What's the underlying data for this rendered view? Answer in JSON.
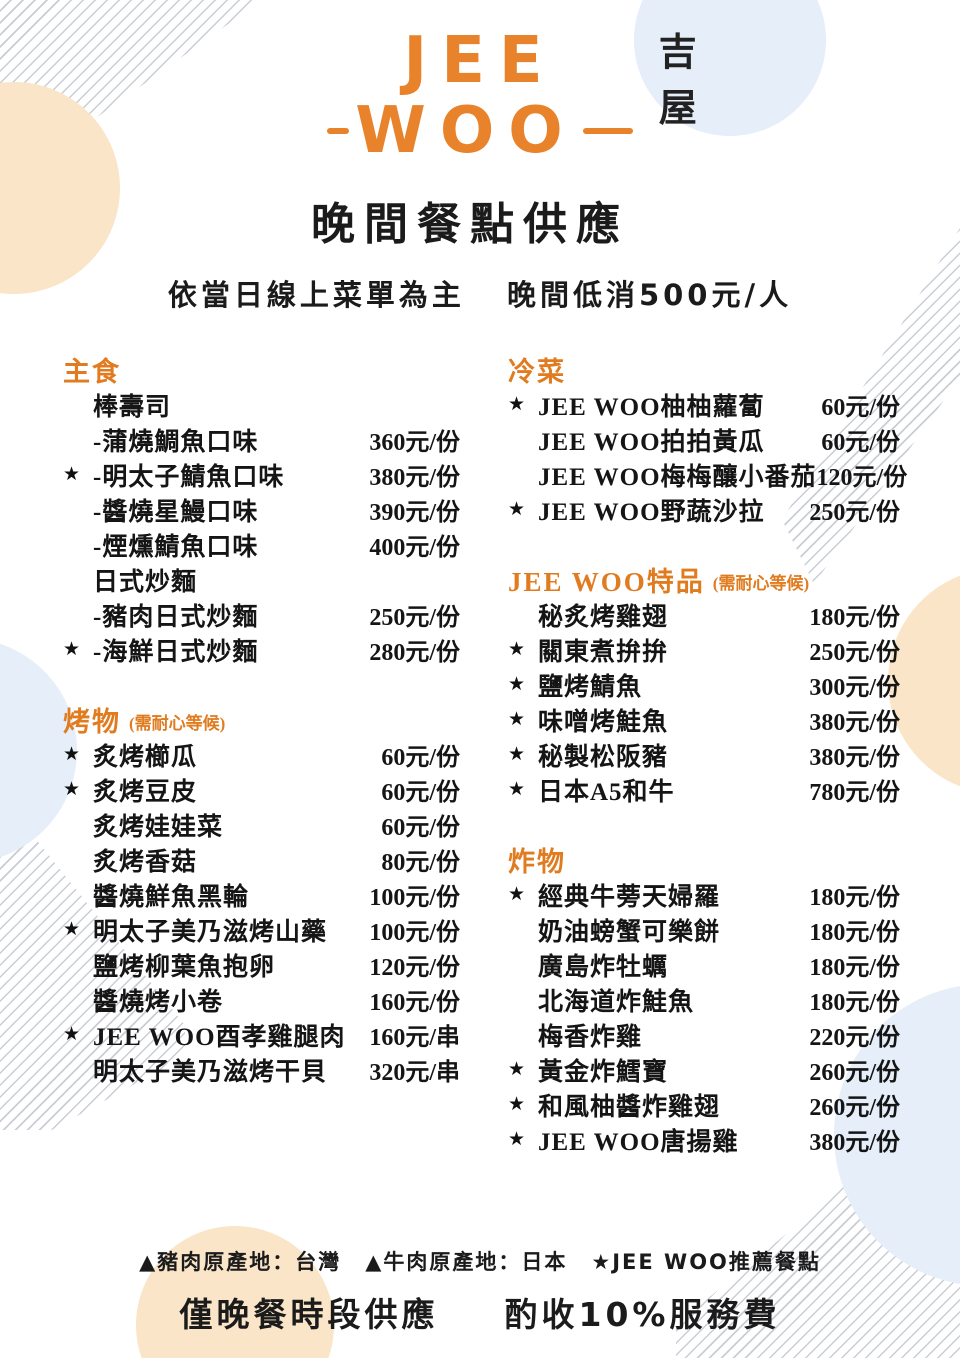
{
  "logo": {
    "top": "JEE",
    "bottom": "WOO",
    "side_chars": [
      "吉",
      "屋"
    ]
  },
  "title": "晚間餐點供應",
  "subtitle": {
    "left": "依當日線上菜單為主",
    "right": "晚間低消500元/人"
  },
  "columns": {
    "left": [
      {
        "title": "主食",
        "note": "",
        "items": [
          {
            "marker": "",
            "name": "棒壽司",
            "price": ""
          },
          {
            "marker": "",
            "name": "-蒲燒鯛魚口味",
            "price": "360元/份"
          },
          {
            "marker": "★",
            "name": "-明太子鯖魚口味",
            "price": "380元/份"
          },
          {
            "marker": "",
            "name": "-醬燒星鰻口味",
            "price": "390元/份"
          },
          {
            "marker": "",
            "name": "-煙燻鯖魚口味",
            "price": "400元/份"
          },
          {
            "marker": "",
            "name": "日式炒麵",
            "price": ""
          },
          {
            "marker": "",
            "name": "-豬肉日式炒麵",
            "price": "250元/份"
          },
          {
            "marker": "★",
            "name": "-海鮮日式炒麵",
            "price": "280元/份"
          }
        ]
      },
      {
        "title": "烤物",
        "note": "(需耐心等候)",
        "items": [
          {
            "marker": "★",
            "name": "炙烤櫛瓜",
            "price": "60元/份"
          },
          {
            "marker": "★",
            "name": "炙烤豆皮",
            "price": "60元/份"
          },
          {
            "marker": "",
            "name": "炙烤娃娃菜",
            "price": "60元/份"
          },
          {
            "marker": "",
            "name": "炙烤香菇",
            "price": "80元/份"
          },
          {
            "marker": "",
            "name": "醬燒鮮魚黑輪",
            "price": "100元/份"
          },
          {
            "marker": "★",
            "name": "明太子美乃滋烤山藥",
            "price": "100元/份"
          },
          {
            "marker": "",
            "name": "鹽烤柳葉魚抱卵",
            "price": "120元/份"
          },
          {
            "marker": "",
            "name": "醬燒烤小卷",
            "price": "160元/份"
          },
          {
            "marker": "★",
            "name": "JEE WOO酉孝雞腿肉",
            "price": "160元/串"
          },
          {
            "marker": "",
            "name": "明太子美乃滋烤干貝",
            "price": "320元/串"
          }
        ]
      }
    ],
    "right": [
      {
        "title": "冷菜",
        "note": "",
        "items": [
          {
            "marker": "★",
            "name": "JEE WOO柚柚蘿蔔",
            "price": "60元/份"
          },
          {
            "marker": "",
            "name": "JEE WOO拍拍黃瓜",
            "price": "60元/份"
          },
          {
            "marker": "",
            "name": "JEE WOO梅梅釀小番茄",
            "price": "120元/份"
          },
          {
            "marker": "★",
            "name": "JEE WOO野蔬沙拉",
            "price": "250元/份"
          }
        ]
      },
      {
        "title": "JEE WOO特品",
        "note": "(需耐心等候)",
        "items": [
          {
            "marker": "",
            "name": "秘炙烤雞翅",
            "price": "180元/份"
          },
          {
            "marker": "★",
            "name": "關東煮拚拚",
            "price": "250元/份"
          },
          {
            "marker": "★",
            "name": "鹽烤鯖魚",
            "price": "300元/份"
          },
          {
            "marker": "★",
            "name": "味噌烤鮭魚",
            "price": "380元/份"
          },
          {
            "marker": "★",
            "name": "秘製松阪豬",
            "price": "380元/份"
          },
          {
            "marker": "★",
            "name": "日本A5和牛",
            "price": "780元/份"
          }
        ]
      },
      {
        "title": "炸物",
        "note": "",
        "items": [
          {
            "marker": "★",
            "name": "經典牛蒡天婦羅",
            "price": "180元/份"
          },
          {
            "marker": "",
            "name": "奶油螃蟹可樂餅",
            "price": "180元/份"
          },
          {
            "marker": "",
            "name": "廣島炸牡蠣",
            "price": "180元/份"
          },
          {
            "marker": "",
            "name": "北海道炸鮭魚",
            "price": "180元/份"
          },
          {
            "marker": "",
            "name": "梅香炸雞",
            "price": "220元/份"
          },
          {
            "marker": "★",
            "name": "黃金炸鱈寶",
            "price": "260元/份"
          },
          {
            "marker": "★",
            "name": "和風柚醬炸雞翅",
            "price": "260元/份"
          },
          {
            "marker": "★",
            "name": "JEE WOO唐揚雞",
            "price": "380元/份"
          }
        ]
      }
    ]
  },
  "footer": {
    "legend": [
      "▲豬肉原產地：台灣",
      "▲牛肉原產地：日本",
      "★JEE WOO推薦餐點"
    ],
    "service_left": "僅晚餐時段供應",
    "service_right": "酌收10%服務費"
  },
  "colors": {
    "accent_orange": "#e8822b",
    "text_black": "#151515",
    "circle_beige": "#fae5c8",
    "circle_blue": "#e5eef9",
    "hatch_grey": "#c9cdd6"
  }
}
